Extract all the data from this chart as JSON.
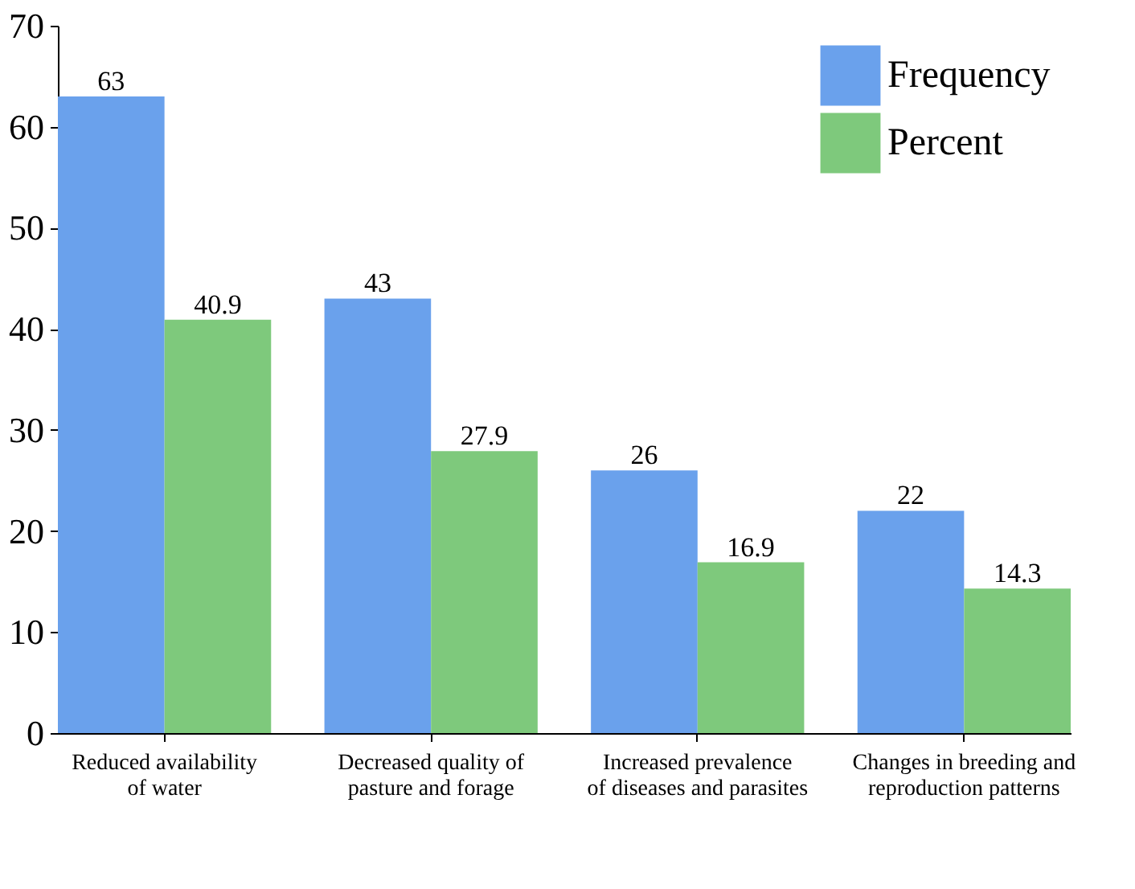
{
  "chart_data": {
    "type": "bar",
    "categories": [
      "Reduced availability\nof water",
      "Decreased quality of\npasture and forage",
      "Increased prevalence\nof diseases and parasites",
      "Changes in breeding and\nreproduction patterns"
    ],
    "series": [
      {
        "name": "Frequency",
        "color": "#6aa1ec",
        "values": [
          63,
          43,
          26,
          22
        ]
      },
      {
        "name": "Percent",
        "color": "#7ec97c",
        "values": [
          40.9,
          27.9,
          16.9,
          14.3
        ]
      }
    ],
    "ylim": [
      0,
      70
    ],
    "yticks": [
      0,
      10,
      20,
      30,
      40,
      50,
      60,
      70
    ],
    "grid": false,
    "legend": "top right",
    "data_labels": true
  }
}
